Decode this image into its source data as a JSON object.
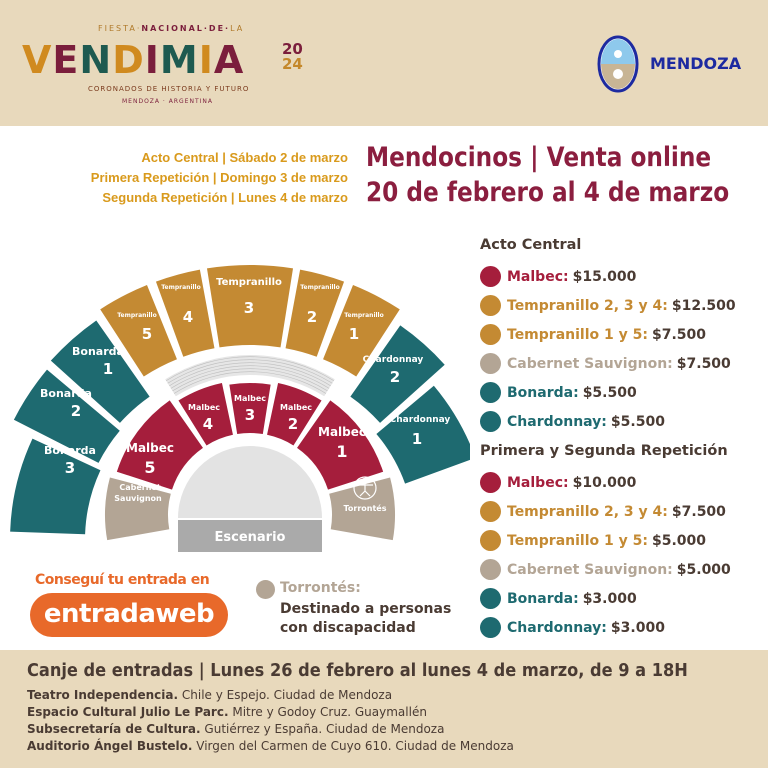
{
  "header": {
    "logo": {
      "top_line_a": "FIESTA·",
      "top_line_b": "NACIONAL·DE·",
      "top_line_c": "LA",
      "word": "VENDIMIA",
      "year_a": "20",
      "year_b": "24",
      "tagline": "CORONADOS DE HISTORIA Y FUTURO",
      "location": "MENDOZA · ARGENTINA"
    },
    "government_logo": "MENDOZA"
  },
  "schedule": [
    "Acto Central | Sábado 2 de marzo",
    "Primera Repetición | Domingo 3 de marzo",
    "Segunda Repetición | Lunes 4 de marzo"
  ],
  "title": {
    "line1": "Mendocinos | Venta online",
    "line2": "20 de febrero al 4 de marzo"
  },
  "colors": {
    "malbec": "#a51e3c",
    "tempranillo": "#c48a33",
    "cabernet": "#b3a595",
    "bonarda": "#1e6a70",
    "chardonnay": "#1e6a70",
    "torrontes": "#b3a595",
    "stage": "#aaaaaa",
    "accent_orange": "#e8692a"
  },
  "seating_map": {
    "sectors": {
      "malbec_1": [
        "Malbec",
        "1"
      ],
      "malbec_2": [
        "Malbec",
        "2"
      ],
      "malbec_3": [
        "Malbec",
        "3"
      ],
      "malbec_4": [
        "Malbec",
        "4"
      ],
      "malbec_5": [
        "Malbec",
        "5"
      ],
      "tempranillo_1": [
        "Tempranillo",
        "1"
      ],
      "tempranillo_2": [
        "Tempranillo",
        "2"
      ],
      "tempranillo_3": [
        "Tempranillo",
        "3"
      ],
      "tempranillo_4": [
        "Tempranillo",
        "4"
      ],
      "tempranillo_5": [
        "Tempranillo",
        "5"
      ],
      "bonarda_1": [
        "Bonarda",
        "1"
      ],
      "bonarda_2": [
        "Bonarda",
        "2"
      ],
      "bonarda_3": [
        "Bonarda",
        "3"
      ],
      "chardonnay_1": [
        "Chardonnay",
        "1"
      ],
      "chardonnay_2": [
        "Chardonnay",
        "2"
      ],
      "cabernet": [
        "Cabernet",
        "Sauvignon"
      ],
      "torrontes": [
        "Torrontés"
      ]
    },
    "stage": "Escenario",
    "torrontes_icon": "accessibility-icon"
  },
  "prices": {
    "groups": [
      {
        "heading": "Acto Central",
        "items": [
          {
            "label": "Malbec:",
            "price": "$15.000",
            "color": "#a51e3c"
          },
          {
            "label": "Tempranillo 2, 3 y 4:",
            "price": "$12.500",
            "color": "#c48a33"
          },
          {
            "label": "Tempranillo 1 y 5:",
            "price": "$7.500",
            "color": "#c48a33"
          },
          {
            "label": "Cabernet Sauvignon:",
            "price": "$7.500",
            "color": "#b3a595"
          },
          {
            "label": "Bonarda:",
            "price": "$5.500",
            "color": "#1e6a70"
          },
          {
            "label": "Chardonnay:",
            "price": "$5.500",
            "color": "#1e6a70"
          }
        ]
      },
      {
        "heading": "Primera y Segunda Repetición",
        "items": [
          {
            "label": "Malbec:",
            "price": "$10.000",
            "color": "#a51e3c"
          },
          {
            "label": "Tempranillo 2, 3 y 4:",
            "price": "$7.500",
            "color": "#c48a33"
          },
          {
            "label": "Tempranillo 1 y 5:",
            "price": "$5.000",
            "color": "#c48a33"
          },
          {
            "label": "Cabernet Sauvignon:",
            "price": "$5.000",
            "color": "#b3a595"
          },
          {
            "label": "Bonarda:",
            "price": "$3.000",
            "color": "#1e6a70"
          },
          {
            "label": "Chardonnay:",
            "price": "$3.000",
            "color": "#1e6a70"
          }
        ]
      }
    ]
  },
  "cta": {
    "text": "Conseguí tu entrada en",
    "button": "entradaweb"
  },
  "torrontes_note": {
    "label": "Torrontés:",
    "text": "Destinado a personas con discapacidad"
  },
  "footer": {
    "heading": "Canje de entradas | Lunes 26 de febrero al lunes 4 de marzo, de 9 a 18H",
    "locations": [
      {
        "name": "Teatro Independencia.",
        "address": "Chile y Espejo. Ciudad de Mendoza"
      },
      {
        "name": "Espacio Cultural Julio Le Parc.",
        "address": "Mitre y Godoy Cruz. Guaymallén"
      },
      {
        "name": "Subsecretaría de Cultura.",
        "address": "Gutiérrez y España. Ciudad de Mendoza"
      },
      {
        "name": "Auditorio Ángel Bustelo.",
        "address": "Virgen del Carmen de Cuyo 610. Ciudad de Mendoza"
      }
    ]
  }
}
